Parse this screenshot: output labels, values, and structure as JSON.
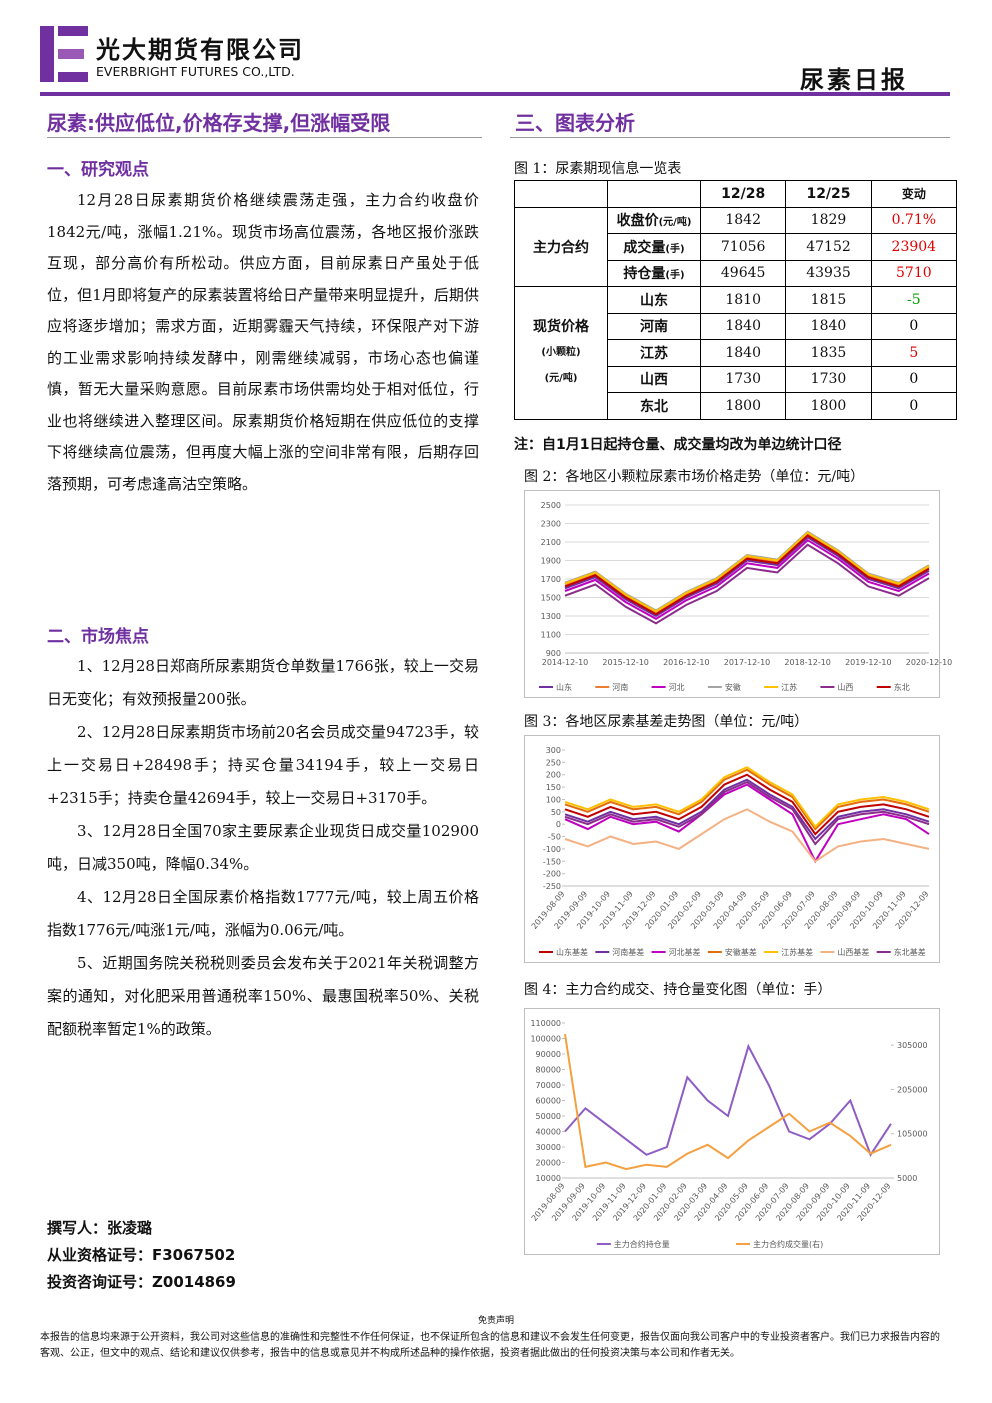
{
  "header": {
    "company_cn": "光大期货有限公司",
    "company_en": "EVERBRIGHT FUTURES CO.,LTD.",
    "report_type": "尿素日报"
  },
  "headline": "尿素:供应低位,价格存支撑,但涨幅受限",
  "sections": [
    {
      "heading": "一、研究观点",
      "paragraphs": [
        "12月28日尿素期货价格继续震荡走强，主力合约收盘价1842元/吨，涨幅1.21%。现货市场高位震荡，各地区报价涨跌互现，部分高价有所松动。供应方面，目前尿素日产虽处于低位，但1月即将复产的尿素装置将给日产量带来明显提升，后期供应将逐步增加；需求方面，近期雾霾天气持续，环保限产对下游的工业需求影响持续发酵中，刚需继续减弱，市场心态也偏谨慎，暂无大量采购意愿。目前尿素市场供需均处于相对低位，行业也将继续进入整理区间。尿素期货价格短期在供应低位的支撑下将继续高位震荡，但再度大幅上涨的空间非常有限，后期存回落预期，可考虑逢高沽空策略。"
      ]
    },
    {
      "heading": "二、市场焦点",
      "paragraphs": [
        "1、12月28日郑商所尿素期货仓单数量1766张，较上一交易日无变化；有效预报量200张。",
        "2、12月28日尿素期货市场前20名会员成交量94723手，较上一交易日+28498手；持买仓量34194手，较上一交易日+2315手；持卖仓量42694手，较上一交易日+3170手。",
        "3、12月28日全国70家主要尿素企业现货日成交量102900吨，日减350吨，降幅0.34%。",
        "4、12月28日全国尿素价格指数1777元/吨，较上周五价格指数1776元/吨涨1元/吨，涨幅为0.06元/吨。",
        "5、近期国务院关税税则委员会发布关于2021年关税调整方案的通知，对化肥采用普通税率150%、最惠国税率50%、关税配额税率暂定1%的政策。"
      ]
    }
  ],
  "authors": [
    "撰写人：张凌璐",
    "从业资格证号：F3067502",
    "投资咨询证号：Z0014869"
  ],
  "right_title": "三、图表分析",
  "table": {
    "caption": "图 1：尿素期现信息一览表",
    "columns": [
      "12/28",
      "12/25",
      "变动"
    ],
    "groups": [
      {
        "label": "主力合约",
        "rows": [
          {
            "item": "收盘价",
            "unit": "(元/吨)",
            "values": [
              "1842",
              "1829",
              "0.71%"
            ]
          },
          {
            "item": "成交量",
            "unit": "(手)",
            "values": [
              "71056",
              "47152",
              "23904"
            ]
          },
          {
            "item": "持仓量",
            "unit": "(手)",
            "values": [
              "49645",
              "43935",
              "5710"
            ]
          }
        ]
      },
      {
        "label": "现货价格",
        "sublabels": [
          "(小颗粒)",
          "(元/吨)"
        ],
        "rows": [
          {
            "item": "山东",
            "values": [
              "1810",
              "1815",
              "-5"
            ]
          },
          {
            "item": "河南",
            "values": [
              "1840",
              "1840",
              "0"
            ]
          },
          {
            "item": "江苏",
            "values": [
              "1840",
              "1835",
              "5"
            ]
          },
          {
            "item": "山西",
            "values": [
              "1730",
              "1730",
              "0"
            ]
          },
          {
            "item": "东北",
            "values": [
              "1800",
              "1800",
              "0"
            ]
          }
        ]
      }
    ],
    "note": "注：自1月1日起持仓量、成交量均改为单边统计口径"
  },
  "chart_data": [
    {
      "type": "line",
      "title": "图 2：各地区小颗粒尿素市场价格走势（单位：元/吨）",
      "grid": true,
      "categories": [
        "2014-12-10",
        null,
        "2015-12-10",
        null,
        "2016-12-10",
        null,
        "2017-12-10",
        null,
        "2018-12-10",
        null,
        "2019-12-10",
        null,
        "2020-12-10"
      ],
      "ylim": [
        900,
        2500
      ],
      "yticks": [
        900,
        1100,
        1300,
        1500,
        1700,
        1900,
        2100,
        2300,
        2500
      ],
      "series": [
        {
          "name": "山东",
          "color": "#7030a0",
          "values": [
            1600,
            1720,
            1480,
            1300,
            1500,
            1650,
            1900,
            1850,
            2150,
            1950,
            1700,
            1600,
            1790
          ]
        },
        {
          "name": "河南",
          "color": "#ed7d31",
          "values": [
            1640,
            1760,
            1520,
            1340,
            1540,
            1690,
            1940,
            1890,
            2190,
            1990,
            1740,
            1640,
            1830
          ]
        },
        {
          "name": "河北",
          "color": "#c000c0",
          "values": [
            1570,
            1690,
            1450,
            1270,
            1470,
            1620,
            1870,
            1820,
            2120,
            1920,
            1670,
            1570,
            1760
          ]
        },
        {
          "name": "安徽",
          "color": "#a5a5a5",
          "values": [
            1660,
            1780,
            1540,
            1360,
            1560,
            1710,
            1960,
            1910,
            2210,
            2010,
            1760,
            1660,
            1850
          ]
        },
        {
          "name": "江苏",
          "color": "#ffc000",
          "values": [
            1650,
            1770,
            1530,
            1350,
            1550,
            1700,
            1950,
            1900,
            2200,
            2000,
            1750,
            1650,
            1840
          ]
        },
        {
          "name": "山西",
          "color": "#8b2c8b",
          "values": [
            1520,
            1640,
            1400,
            1220,
            1420,
            1570,
            1820,
            1770,
            2070,
            1870,
            1620,
            1520,
            1710
          ]
        },
        {
          "name": "东北",
          "color": "#c00000",
          "values": [
            1620,
            1740,
            1500,
            1320,
            1520,
            1670,
            1920,
            1870,
            2170,
            1970,
            1720,
            1620,
            1810
          ]
        }
      ]
    },
    {
      "type": "line",
      "title": "图 3：各地区尿素基差走势图（单位：元/吨）",
      "grid": false,
      "categories": [
        "2019-08-09",
        "2019-09-09",
        "2019-10-09",
        "2019-11-09",
        "2019-12-09",
        "2020-01-09",
        "2020-02-09",
        "2020-03-09",
        "2020-04-09",
        "2020-05-09",
        "2020-06-09",
        "2020-07-09",
        "2020-08-09",
        "2020-09-09",
        "2020-10-09",
        "2020-11-09",
        "2020-12-09"
      ],
      "ylim": [
        -250,
        300
      ],
      "yticks": [
        -250,
        -200,
        -150,
        -100,
        -50,
        0,
        50,
        100,
        150,
        200,
        250,
        300
      ],
      "series": [
        {
          "name": "山东基差",
          "color": "#c00000",
          "values": [
            60,
            30,
            70,
            40,
            50,
            20,
            70,
            160,
            200,
            140,
            90,
            -40,
            50,
            70,
            80,
            60,
            30
          ]
        },
        {
          "name": "河南基差",
          "color": "#7030a0",
          "values": [
            40,
            10,
            50,
            20,
            30,
            0,
            50,
            140,
            180,
            120,
            70,
            -60,
            30,
            50,
            60,
            40,
            10
          ]
        },
        {
          "name": "河北基差",
          "color": "#c000c0",
          "values": [
            20,
            -20,
            30,
            0,
            10,
            -30,
            40,
            120,
            160,
            100,
            40,
            -150,
            0,
            20,
            40,
            20,
            -40
          ]
        },
        {
          "name": "安徽基差",
          "color": "#e46c0a",
          "values": [
            80,
            50,
            90,
            60,
            70,
            40,
            90,
            180,
            220,
            160,
            110,
            -20,
            70,
            90,
            100,
            80,
            50
          ]
        },
        {
          "name": "江苏基差",
          "color": "#ffc000",
          "values": [
            90,
            60,
            100,
            70,
            80,
            50,
            100,
            190,
            230,
            170,
            120,
            -10,
            80,
            100,
            110,
            90,
            60
          ]
        },
        {
          "name": "山西基差",
          "color": "#f4b183",
          "values": [
            -60,
            -90,
            -50,
            -80,
            -70,
            -100,
            -40,
            20,
            60,
            10,
            -30,
            -150,
            -90,
            -70,
            -60,
            -80,
            -100
          ]
        },
        {
          "name": "东北基差",
          "color": "#8b2c8b",
          "values": [
            30,
            0,
            40,
            10,
            20,
            -10,
            40,
            130,
            170,
            110,
            60,
            -80,
            20,
            40,
            50,
            30,
            0
          ]
        }
      ]
    },
    {
      "type": "line",
      "title": "图 4：主力合约成交、持仓量变化图（单位：手）",
      "grid": false,
      "categories": [
        "2019-08-09",
        "2019-09-09",
        "2019-10-09",
        "2019-11-09",
        "2019-12-09",
        "2020-01-09",
        "2020-02-09",
        "2020-03-09",
        "2020-04-09",
        "2020-05-09",
        "2020-06-09",
        "2020-07-09",
        "2020-08-09",
        "2020-09-09",
        "2020-10-09",
        "2020-11-09",
        "2020-12-09"
      ],
      "ylim": [
        10000,
        110000
      ],
      "yticks": [
        10000,
        20000,
        30000,
        40000,
        50000,
        60000,
        70000,
        80000,
        90000,
        100000,
        110000
      ],
      "y2lim": [
        5000,
        355000
      ],
      "y2ticks": [
        5000,
        105000,
        205000,
        305000
      ],
      "series": [
        {
          "name": "主力合约持仓量",
          "color": "#8e5cc2",
          "values": [
            40000,
            55000,
            45000,
            35000,
            25000,
            30000,
            75000,
            60000,
            50000,
            95000,
            70000,
            40000,
            35000,
            45000,
            60000,
            25000,
            45000
          ]
        },
        {
          "name": "主力合约成交量(右)",
          "color": "#f4a040",
          "axis": "y2",
          "values": [
            330000,
            30000,
            40000,
            25000,
            35000,
            30000,
            60000,
            80000,
            50000,
            90000,
            120000,
            150000,
            110000,
            130000,
            100000,
            60000,
            80000
          ]
        }
      ]
    }
  ],
  "footer": {
    "title": "免责声明",
    "text": "本报告的信息均来源于公开资料，我公司对这些信息的准确性和完整性不作任何保证，也不保证所包含的信息和建议不会发生任何变更，报告仅面向我公司客户中的专业投资者客户。我们已力求报告内容的客观、公正，但文中的观点、结论和建议仅供参考，报告中的信息或意见并不构成所述品种的操作依据，投资者据此做出的任何投资决策与本公司和作者无关。"
  }
}
